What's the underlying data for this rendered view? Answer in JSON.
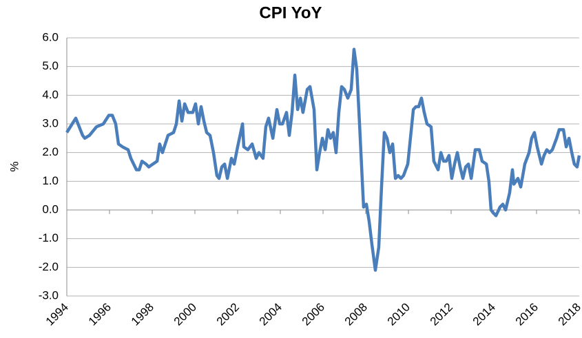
{
  "chart_data": {
    "type": "line",
    "title": "CPI YoY",
    "y_label": "%",
    "x": [
      1994.0,
      1994.42,
      1994.74,
      1994.84,
      1995.06,
      1995.39,
      1995.71,
      1995.97,
      1996.13,
      1996.29,
      1996.42,
      1996.61,
      1996.87,
      1997.0,
      1997.26,
      1997.39,
      1997.52,
      1997.71,
      1997.84,
      1998.03,
      1998.23,
      1998.35,
      1998.48,
      1998.74,
      1999.0,
      1999.13,
      1999.26,
      1999.39,
      1999.52,
      1999.68,
      1999.9,
      2000.03,
      2000.16,
      2000.29,
      2000.42,
      2000.55,
      2000.71,
      2000.87,
      2001.03,
      2001.13,
      2001.26,
      2001.39,
      2001.52,
      2001.71,
      2001.84,
      2002.0,
      2002.23,
      2002.29,
      2002.48,
      2002.68,
      2002.87,
      2003.0,
      2003.19,
      2003.32,
      2003.45,
      2003.65,
      2003.84,
      2003.97,
      2004.1,
      2004.29,
      2004.42,
      2004.55,
      2004.68,
      2004.81,
      2004.94,
      2005.06,
      2005.26,
      2005.39,
      2005.58,
      2005.71,
      2005.84,
      2005.97,
      2006.1,
      2006.23,
      2006.35,
      2006.48,
      2006.61,
      2006.74,
      2006.87,
      2007.0,
      2007.16,
      2007.32,
      2007.45,
      2007.58,
      2007.71,
      2007.84,
      2007.9,
      2008.03,
      2008.16,
      2008.29,
      2008.45,
      2008.61,
      2008.74,
      2008.87,
      2009.0,
      2009.13,
      2009.26,
      2009.39,
      2009.52,
      2009.65,
      2009.77,
      2009.97,
      2010.23,
      2010.35,
      2010.48,
      2010.61,
      2010.74,
      2010.87,
      2011.06,
      2011.19,
      2011.39,
      2011.52,
      2011.65,
      2011.77,
      2011.9,
      2012.03,
      2012.16,
      2012.29,
      2012.42,
      2012.55,
      2012.68,
      2012.81,
      2012.94,
      2013.13,
      2013.32,
      2013.45,
      2013.65,
      2013.77,
      2013.87,
      2013.97,
      2014.1,
      2014.29,
      2014.42,
      2014.55,
      2014.74,
      2014.87,
      2014.94,
      2015.13,
      2015.26,
      2015.45,
      2015.65,
      2015.77,
      2015.9,
      2016.03,
      2016.23,
      2016.35,
      2016.48,
      2016.61,
      2016.74,
      2016.94,
      2017.06,
      2017.26,
      2017.39,
      2017.52,
      2017.65,
      2017.77,
      2017.9,
      2018.0
    ],
    "series": [
      {
        "name": "CPI YoY",
        "color": "#4a7ebb",
        "values": [
          2.7,
          3.2,
          2.6,
          2.5,
          2.6,
          2.9,
          3.0,
          3.3,
          3.3,
          3.0,
          2.3,
          2.2,
          2.1,
          1.8,
          1.4,
          1.4,
          1.7,
          1.6,
          1.5,
          1.6,
          1.7,
          2.3,
          2.0,
          2.6,
          2.7,
          3.0,
          3.8,
          3.1,
          3.7,
          3.4,
          3.4,
          3.7,
          3.0,
          3.6,
          3.1,
          2.7,
          2.6,
          2.0,
          1.2,
          1.1,
          1.5,
          1.6,
          1.1,
          1.8,
          1.6,
          2.2,
          3.0,
          2.2,
          2.1,
          2.3,
          1.8,
          2.0,
          1.8,
          2.9,
          3.2,
          2.5,
          3.5,
          3.0,
          3.0,
          3.4,
          2.6,
          3.4,
          4.7,
          3.5,
          3.9,
          3.4,
          4.2,
          4.3,
          3.5,
          1.4,
          2.0,
          2.5,
          2.1,
          2.8,
          2.5,
          2.7,
          2.0,
          3.4,
          4.3,
          4.2,
          3.9,
          4.2,
          5.6,
          4.9,
          3.0,
          1.0,
          0.1,
          0.2,
          -0.4,
          -1.2,
          -2.1,
          -1.3,
          0.8,
          2.7,
          2.5,
          2.0,
          2.3,
          1.1,
          1.2,
          1.1,
          1.2,
          1.6,
          3.5,
          3.6,
          3.6,
          3.9,
          3.4,
          3.0,
          2.9,
          1.7,
          1.4,
          2.0,
          1.7,
          1.7,
          1.9,
          1.1,
          1.6,
          2.0,
          1.5,
          1.1,
          1.5,
          1.6,
          1.1,
          2.1,
          2.1,
          1.7,
          1.6,
          1.0,
          0.0,
          -0.1,
          -0.2,
          0.1,
          0.2,
          0.0,
          0.6,
          1.4,
          0.9,
          1.1,
          0.8,
          1.6,
          2.0,
          2.5,
          2.7,
          2.2,
          1.6,
          1.9,
          2.1,
          2.0,
          2.1,
          2.5,
          2.8,
          2.8,
          2.2,
          2.5,
          2.0,
          1.6,
          1.5,
          1.9
        ]
      }
    ],
    "xlim": [
      1994,
      2018
    ],
    "xticks": [
      1994,
      1996,
      1998,
      2000,
      2002,
      2004,
      2006,
      2008,
      2010,
      2012,
      2014,
      2016,
      2018
    ],
    "ylim": [
      -3,
      6
    ],
    "yticks": [
      {
        "value": -3,
        "label": "-3.0"
      },
      {
        "value": -2,
        "label": "-2.0"
      },
      {
        "value": -1,
        "label": "-1.0"
      },
      {
        "value": 0,
        "label": "0.0"
      },
      {
        "value": 1,
        "label": "1.0"
      },
      {
        "value": 2,
        "label": "2.0"
      },
      {
        "value": 3,
        "label": "3.0"
      },
      {
        "value": 4,
        "label": "4.0"
      },
      {
        "value": 5,
        "label": "5.0"
      },
      {
        "value": 6,
        "label": "6.0"
      }
    ],
    "grid": true
  }
}
